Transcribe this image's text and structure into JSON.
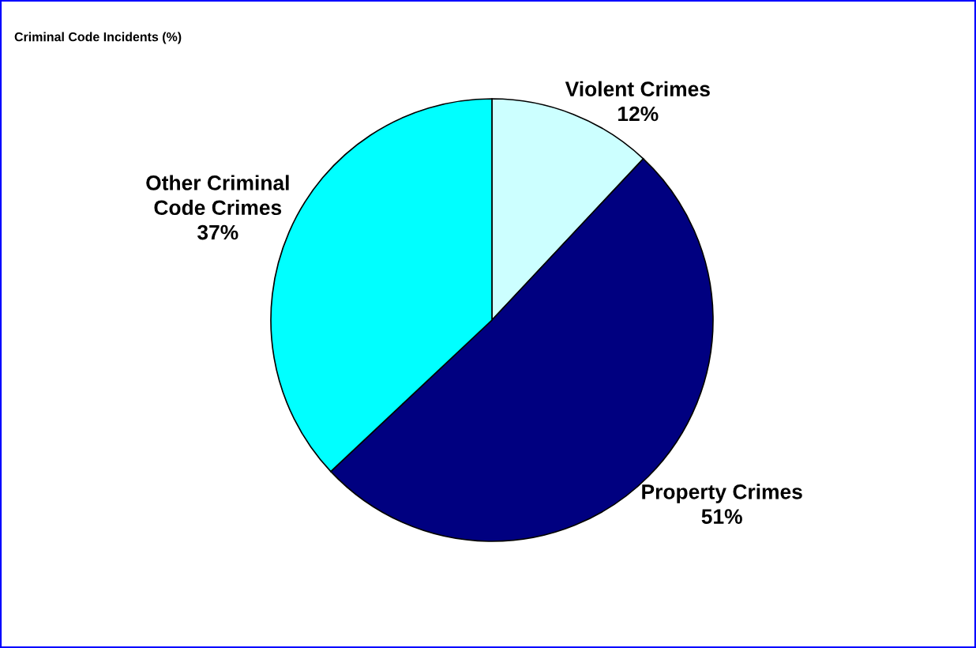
{
  "chart_data": {
    "type": "pie",
    "title": "Criminal Code Incidents (%)",
    "categories": [
      "Violent Crimes",
      "Property Crimes",
      "Other Criminal Code Crimes"
    ],
    "values": [
      12,
      51,
      37
    ],
    "value_labels": [
      "12%",
      "51%",
      "37%"
    ],
    "colors": [
      "#ccffff",
      "#000080",
      "#00ffff"
    ]
  }
}
